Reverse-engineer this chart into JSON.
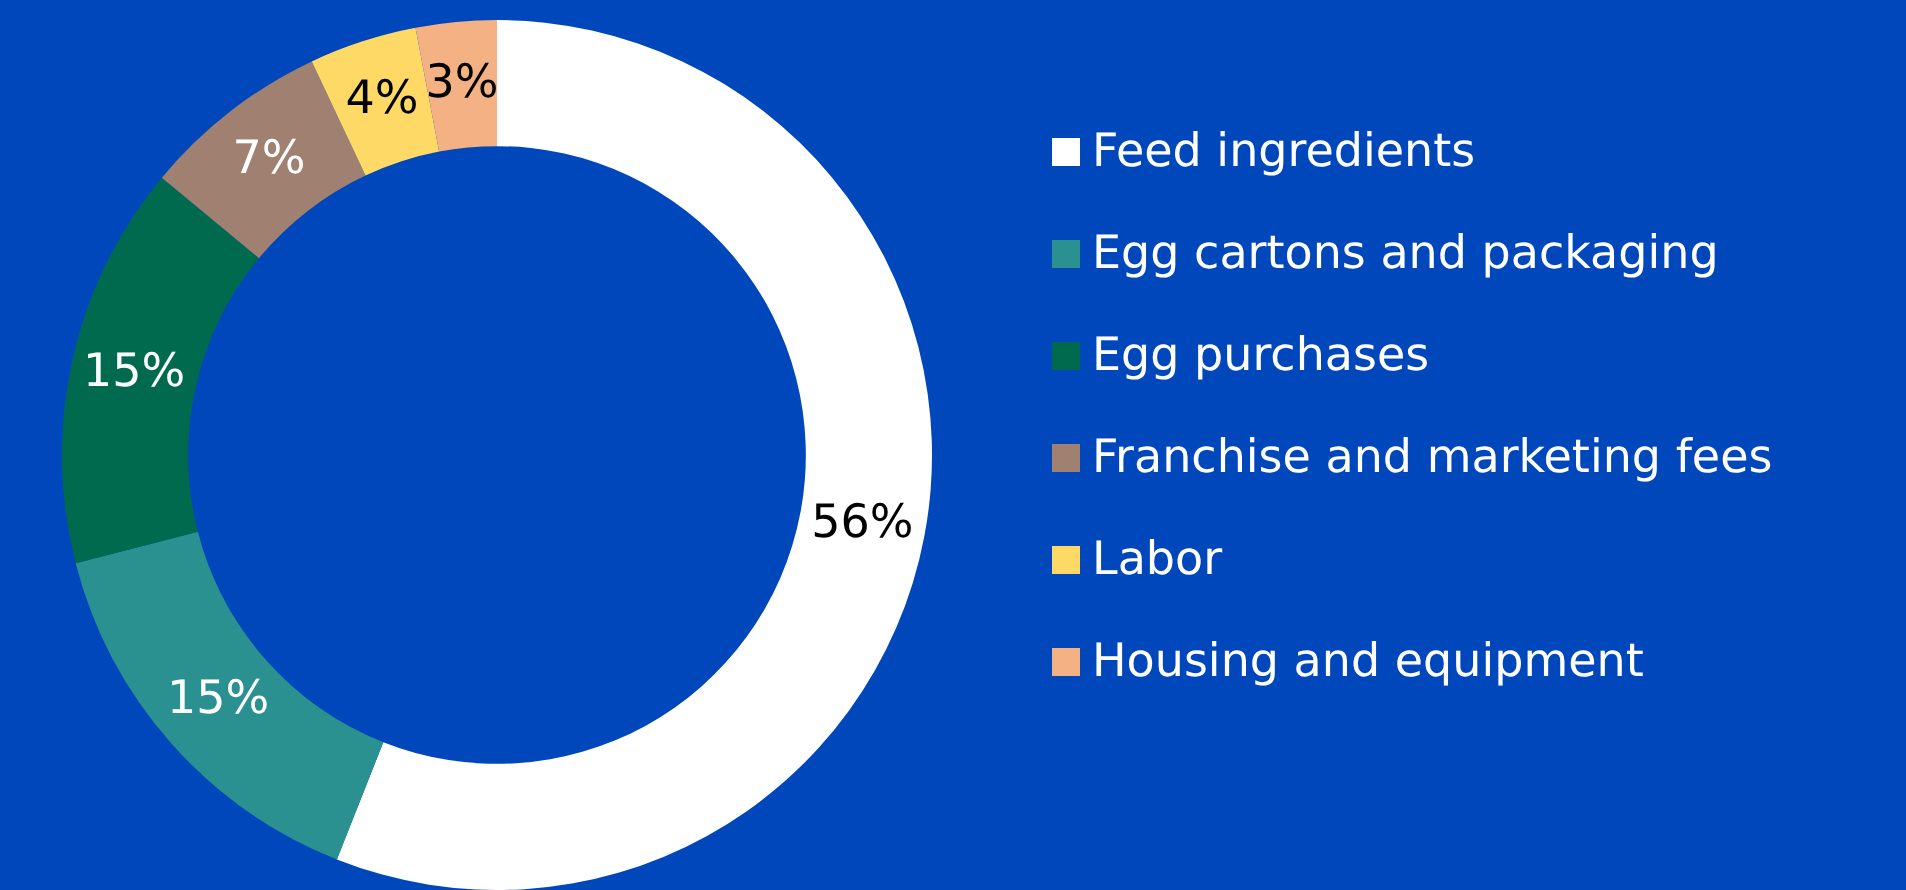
{
  "chart_data": {
    "type": "donut",
    "categories": [
      "Feed ingredients",
      "Egg cartons and packaging",
      "Egg purchases",
      "Franchise and marketing fees",
      "Labor",
      "Housing and equipment"
    ],
    "values": [
      56,
      15,
      15,
      7,
      4,
      3
    ],
    "colors": [
      "#ffffff",
      "#2a9190",
      "#006a4e",
      "#a08070",
      "#ffd966",
      "#f4b183"
    ],
    "value_labels": [
      "56%",
      "15%",
      "15%",
      "7%",
      "4%",
      "3%"
    ],
    "legend": "right"
  }
}
